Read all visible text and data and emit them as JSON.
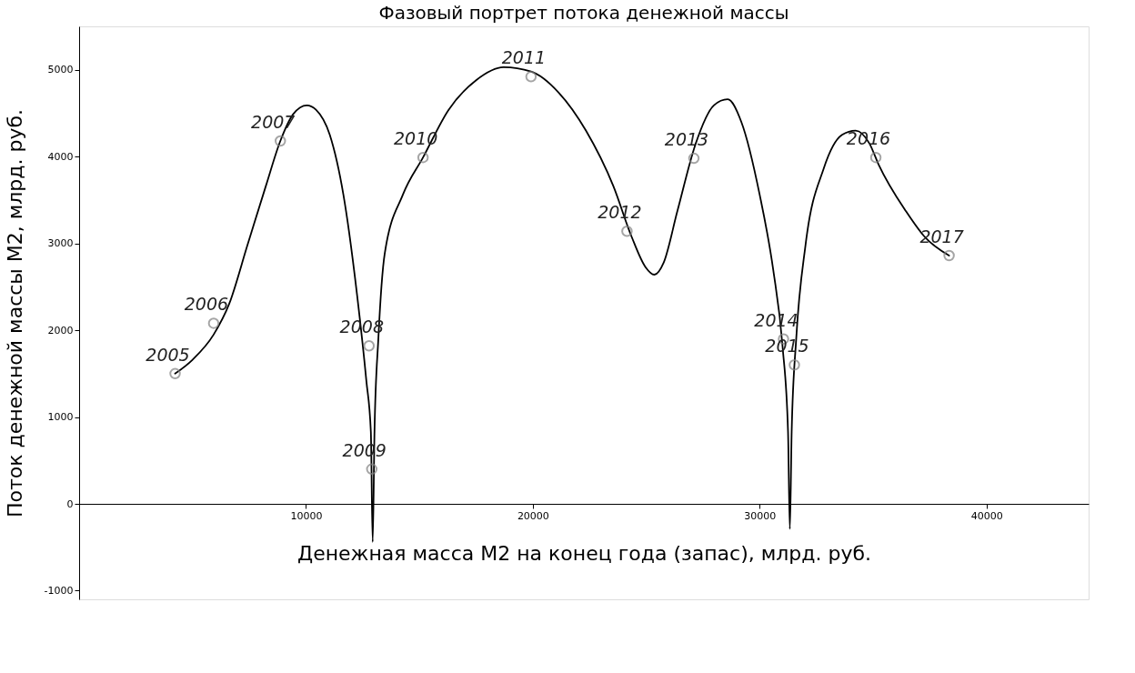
{
  "chart_data": {
    "type": "scatter",
    "title": "Фазовый портрет потока денежной массы",
    "xlabel": "Денежная масса М2 на конец года (запас), млрд. руб.",
    "ylabel": "Поток денежной массы М2, млрд.  руб.",
    "xlim": [
      0,
      44500
    ],
    "ylim": [
      -1100,
      5500
    ],
    "xticks": [
      10000,
      20000,
      30000,
      40000
    ],
    "yticks": [
      -1000,
      0,
      1000,
      2000,
      3000,
      4000,
      5000
    ],
    "grid": false,
    "series": [
      {
        "type": "line",
        "color": "#000000",
        "line_style": "solid",
        "marker": "none",
        "x": [
          4230,
          5000,
          5930,
          6610,
          7420,
          8230,
          8870,
          9440,
          10040,
          10440,
          11050,
          11650,
          12260,
          12660,
          12860,
          12940,
          13020,
          13190,
          13470,
          14270,
          15160,
          16290,
          17500,
          18710,
          19920,
          21130,
          22340,
          23550,
          24350,
          24960,
          25360,
          25770,
          26370,
          27180,
          27980,
          28590,
          29190,
          30000,
          30600,
          31010,
          31250,
          31330,
          31410,
          31610,
          32020,
          32820,
          33630,
          34230,
          34840,
          35240,
          36450,
          37260,
          38350
        ],
        "values": [
          1500,
          1660,
          1950,
          2300,
          2980,
          3660,
          4180,
          4490,
          4590,
          4540,
          4250,
          3560,
          2390,
          1420,
          830,
          -440,
          830,
          1900,
          2880,
          3560,
          3990,
          4540,
          4880,
          5030,
          4980,
          4740,
          4300,
          3660,
          3080,
          2730,
          2640,
          2780,
          3370,
          4150,
          4590,
          4660,
          4400,
          3560,
          2690,
          1810,
          830,
          -290,
          830,
          1900,
          2980,
          3860,
          4250,
          4300,
          4150,
          3910,
          3370,
          3080,
          2860
        ]
      },
      {
        "color": "#808080",
        "marker": "circle",
        "x": [
          4230,
          5930,
          8870,
          12780,
          12900,
          15160,
          19920,
          24150,
          27100,
          31050,
          31530,
          35120,
          38350
        ],
        "values": [
          1500,
          2080,
          4180,
          1820,
          400,
          3990,
          4920,
          3140,
          3980,
          1900,
          1600,
          3990,
          2860
        ]
      }
    ],
    "annotations": [
      {
        "text": "2005",
        "x": 4230,
        "y": 1500
      },
      {
        "text": "2006",
        "x": 5930,
        "y": 2080
      },
      {
        "text": "2007",
        "x": 8870,
        "y": 4180
      },
      {
        "text": "2008",
        "x": 12780,
        "y": 1820
      },
      {
        "text": "2009",
        "x": 12900,
        "y": 400
      },
      {
        "text": "2010",
        "x": 15160,
        "y": 3990
      },
      {
        "text": "2011",
        "x": 19920,
        "y": 4920
      },
      {
        "text": "2012",
        "x": 24150,
        "y": 3140
      },
      {
        "text": "2013",
        "x": 27100,
        "y": 3980
      },
      {
        "text": "2014",
        "x": 31050,
        "y": 1900
      },
      {
        "text": "2015",
        "x": 31530,
        "y": 1600
      },
      {
        "text": "2016",
        "x": 35120,
        "y": 3990
      },
      {
        "text": "2017",
        "x": 38350,
        "y": 2860
      }
    ]
  }
}
